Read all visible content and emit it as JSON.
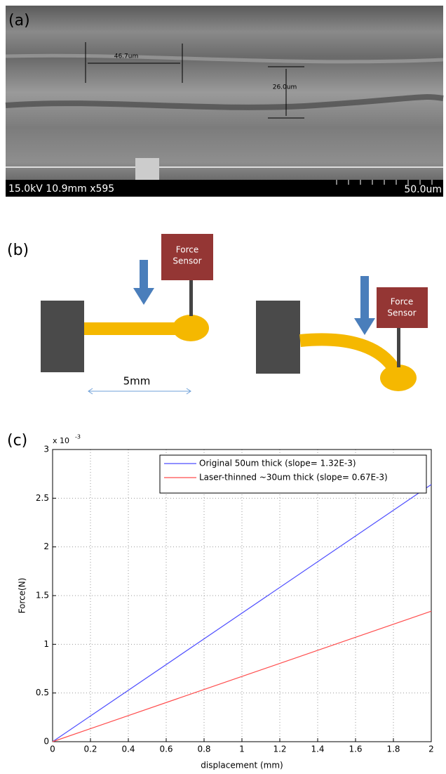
{
  "panel_a": {
    "label": "(a)",
    "info": "15.0kV 10.9mm x595",
    "scale": "50.0um",
    "measurements": [
      "46.7um",
      "26.0um"
    ]
  },
  "panel_b": {
    "label": "(b)",
    "dimension": "5mm",
    "sensors": [
      {
        "lines": [
          "Force",
          "Sensor"
        ]
      },
      {
        "lines": [
          "Force",
          "Sensor"
        ]
      }
    ]
  },
  "panel_c": {
    "label": "(c)"
  },
  "chart_data": {
    "type": "line",
    "xlabel": "displacement (mm)",
    "ylabel": "Force(N)",
    "y_scale_base": "x 10",
    "y_scale_exponent": "-3",
    "x": [
      0,
      2
    ],
    "series": [
      {
        "name": "Original 50um thick (slope= 1.32E-3)",
        "color": "#4d4dff",
        "values": [
          0,
          0.00264
        ]
      },
      {
        "name": "Laser-thinned ~30um thick (slope= 0.67E-3)",
        "color": "#ff4d4d",
        "values": [
          0,
          0.00134
        ]
      }
    ],
    "xlim": [
      0,
      2
    ],
    "xticks": [
      0,
      0.2,
      0.4,
      0.6,
      0.8,
      1,
      1.2,
      1.4,
      1.6,
      1.8,
      2
    ],
    "ylim": [
      0,
      0.003
    ],
    "yticks": [
      {
        "value": 0,
        "label": "0"
      },
      {
        "value": 0.0005,
        "label": "0.5"
      },
      {
        "value": 0.001,
        "label": "1"
      },
      {
        "value": 0.0015,
        "label": "1.5"
      },
      {
        "value": 0.002,
        "label": "2"
      },
      {
        "value": 0.0025,
        "label": "2.5"
      },
      {
        "value": 0.003,
        "label": "3"
      }
    ],
    "grid": true,
    "legend": "top-right"
  }
}
